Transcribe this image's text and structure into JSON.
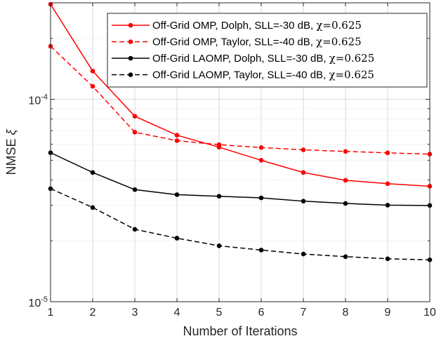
{
  "chart_data": {
    "type": "line",
    "xlabel": "Number of Iterations",
    "ylabel": "NMSE",
    "ylabel_symbol": "ξ",
    "yscale": "log",
    "xlim": [
      1,
      10
    ],
    "ylim": [
      1e-05,
      0.0003
    ],
    "grid": true,
    "legend_position": "top-right",
    "x": [
      1,
      2,
      3,
      4,
      5,
      6,
      7,
      8,
      9,
      10
    ],
    "x_ticks": [
      "1",
      "2",
      "3",
      "4",
      "5",
      "6",
      "7",
      "8",
      "9",
      "10"
    ],
    "y_ticks": [
      {
        "value": 0.0001,
        "base": "10",
        "exp": "-4"
      },
      {
        "value": 1e-05,
        "base": "10",
        "exp": "-5"
      }
    ],
    "series": [
      {
        "name": "Off-Grid OMP, Dolph, SLL=-30 dB, ",
        "chi": "χ=0.625",
        "color": "#ff0000",
        "dash": "solid",
        "values": [
          0.000295,
          0.000138,
          8.25e-05,
          6.65e-05,
          5.8e-05,
          5e-05,
          4.35e-05,
          3.98e-05,
          3.83e-05,
          3.72e-05
        ]
      },
      {
        "name": "Off-Grid OMP, Taylor, SLL=-40 dB, ",
        "chi": "χ=0.625",
        "color": "#ff0000",
        "dash": "dashed",
        "values": [
          0.000183,
          0.000116,
          6.88e-05,
          6.25e-05,
          5.97e-05,
          5.78e-05,
          5.63e-05,
          5.53e-05,
          5.44e-05,
          5.36e-05
        ]
      },
      {
        "name": "Off-Grid LAOMP, Dolph, SLL=-30 dB, ",
        "chi": "χ=0.625",
        "color": "#000000",
        "dash": "solid",
        "values": [
          5.45e-05,
          4.35e-05,
          3.58e-05,
          3.38e-05,
          3.32e-05,
          3.26e-05,
          3.14e-05,
          3.06e-05,
          3e-05,
          2.99e-05
        ]
      },
      {
        "name": "Off-Grid LAOMP, Taylor, SLL=-40 dB, ",
        "chi": "χ=0.625",
        "color": "#000000",
        "dash": "dashed",
        "values": [
          3.62e-05,
          2.92e-05,
          2.28e-05,
          2.06e-05,
          1.89e-05,
          1.8e-05,
          1.72e-05,
          1.67e-05,
          1.63e-05,
          1.61e-05
        ]
      }
    ]
  }
}
